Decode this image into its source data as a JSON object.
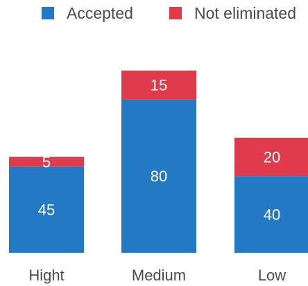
{
  "chart_data": {
    "type": "bar",
    "stacked": true,
    "categories": [
      "Hight",
      "Medium",
      "Low"
    ],
    "series": [
      {
        "name": "Accepted",
        "values": [
          45,
          80,
          40
        ],
        "color": "#2479c4"
      },
      {
        "name": "Not eliminated",
        "values": [
          5,
          15,
          20
        ],
        "color": "#df3b4c"
      }
    ],
    "ylim": [
      0,
      100
    ],
    "legend_position": "top",
    "grid": false,
    "data_labels": true,
    "axes_visible": false
  }
}
